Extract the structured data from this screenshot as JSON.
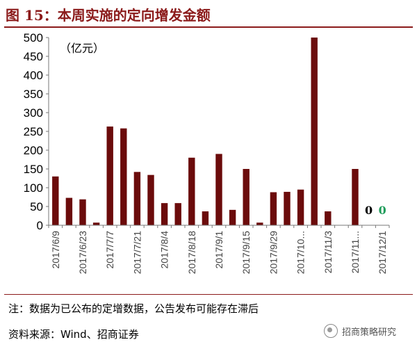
{
  "header": {
    "title": "图 15：本周实施的定向增发金额",
    "unit": "（亿元）"
  },
  "footer": {
    "note": "注：数据为已公布的定增数据，公告发布可能存在滞后",
    "source": "资料来源：Wind、招商证券",
    "watermark": "招商策略研究",
    "watermark_icon": "wechat-icon"
  },
  "colors": {
    "bar": "#6b0b0b",
    "title": "#8b1a1a",
    "label_black": "#000000",
    "label_green": "#1f9c5a"
  },
  "chart_data": {
    "type": "bar",
    "title": "本周实施的定向增发金额",
    "ylabel": "（亿元）",
    "ylim": [
      0,
      500
    ],
    "yticks": [
      0,
      50,
      100,
      150,
      200,
      250,
      300,
      350,
      400,
      450,
      500
    ],
    "xtick_labels": [
      "2017/6/9",
      "2017/6/23",
      "2017/7/7",
      "2017/7/21",
      "2017/8/4",
      "2017/8/18",
      "2017/9/1",
      "2017/9/15",
      "2017/9/29",
      "2017/10...",
      "2017/11/3",
      "2017/11...",
      "2017/12/1"
    ],
    "values": [
      130,
      73,
      69,
      7,
      263,
      258,
      142,
      134,
      59,
      59,
      180,
      37,
      190,
      41,
      150,
      7,
      88,
      89,
      95,
      500,
      37,
      0,
      150,
      0,
      0
    ],
    "data_labels": [
      {
        "index": 23,
        "text": "0",
        "color": "#000000"
      },
      {
        "index": 24,
        "text": "0",
        "color": "#1f9c5a"
      }
    ],
    "grid": false,
    "legend": "none"
  }
}
